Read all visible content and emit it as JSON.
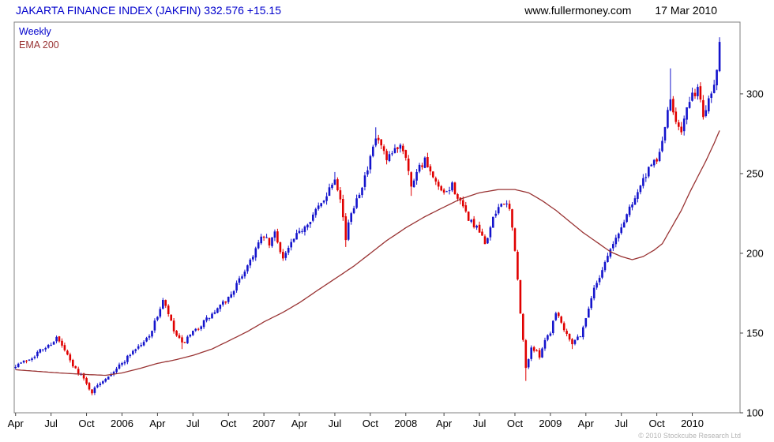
{
  "header": {
    "title": "JAKARTA FINANCE INDEX (JAKFIN) 332.576 +15.15",
    "website": "www.fullermoney.com",
    "date": "17 Mar 2010"
  },
  "legend": {
    "series1": "Weekly",
    "series2": "EMA 200"
  },
  "footer": {
    "copyright": "© 2010 Stockcube Research Ltd"
  },
  "colors": {
    "title": "#0000cc",
    "up": "#1414cc",
    "down": "#e00000",
    "ema": "#993333",
    "border": "#808080",
    "tick": "#444444",
    "axis_text": "#000000"
  },
  "chart_data": {
    "type": "candlestick",
    "title": "JAKARTA FINANCE INDEX (JAKFIN)",
    "last_price": 332.576,
    "change": 15.15,
    "period": "Weekly",
    "overlay": "EMA 200",
    "ylim": [
      100,
      345
    ],
    "y_ticks": [
      100,
      150,
      200,
      250,
      300
    ],
    "weeks_axis": 266,
    "bars": 259,
    "x_ticks": [
      {
        "week": 0,
        "label": "Apr"
      },
      {
        "week": 13,
        "label": "Jul"
      },
      {
        "week": 26,
        "label": "Oct"
      },
      {
        "week": 39,
        "label": "2006"
      },
      {
        "week": 52,
        "label": "Apr"
      },
      {
        "week": 65,
        "label": "Jul"
      },
      {
        "week": 78,
        "label": "Oct"
      },
      {
        "week": 91,
        "label": "2007"
      },
      {
        "week": 104,
        "label": "Apr"
      },
      {
        "week": 117,
        "label": "Jul"
      },
      {
        "week": 130,
        "label": "Oct"
      },
      {
        "week": 143,
        "label": "2008"
      },
      {
        "week": 157,
        "label": "Apr"
      },
      {
        "week": 170,
        "label": "Jul"
      },
      {
        "week": 183,
        "label": "Oct"
      },
      {
        "week": 196,
        "label": "2009"
      },
      {
        "week": 209,
        "label": "Apr"
      },
      {
        "week": 222,
        "label": "Jul"
      },
      {
        "week": 235,
        "label": "Oct"
      },
      {
        "week": 248,
        "label": "2010"
      }
    ],
    "close_anchors": [
      [
        0,
        130
      ],
      [
        3,
        132
      ],
      [
        6,
        135
      ],
      [
        9,
        139
      ],
      [
        12,
        142
      ],
      [
        15,
        147
      ],
      [
        18,
        139
      ],
      [
        21,
        129
      ],
      [
        24,
        124
      ],
      [
        26,
        118
      ],
      [
        28,
        113
      ],
      [
        31,
        119
      ],
      [
        35,
        125
      ],
      [
        39,
        131
      ],
      [
        43,
        139
      ],
      [
        47,
        144
      ],
      [
        50,
        152
      ],
      [
        52,
        161
      ],
      [
        54,
        170
      ],
      [
        56,
        162
      ],
      [
        58,
        151
      ],
      [
        61,
        143
      ],
      [
        65,
        150
      ],
      [
        69,
        157
      ],
      [
        73,
        163
      ],
      [
        78,
        172
      ],
      [
        82,
        183
      ],
      [
        86,
        196
      ],
      [
        89,
        206
      ],
      [
        91,
        211
      ],
      [
        93,
        205
      ],
      [
        95,
        213
      ],
      [
        98,
        197
      ],
      [
        101,
        206
      ],
      [
        104,
        213
      ],
      [
        108,
        222
      ],
      [
        112,
        231
      ],
      [
        115,
        241
      ],
      [
        117,
        248
      ],
      [
        119,
        236
      ],
      [
        121,
        209
      ],
      [
        123,
        226
      ],
      [
        126,
        239
      ],
      [
        129,
        252
      ],
      [
        132,
        272
      ],
      [
        134,
        267
      ],
      [
        136,
        257
      ],
      [
        139,
        265
      ],
      [
        141,
        269
      ],
      [
        143,
        262
      ],
      [
        145,
        241
      ],
      [
        147,
        253
      ],
      [
        150,
        258
      ],
      [
        153,
        246
      ],
      [
        157,
        236
      ],
      [
        160,
        243
      ],
      [
        163,
        231
      ],
      [
        166,
        222
      ],
      [
        170,
        213
      ],
      [
        172,
        206
      ],
      [
        175,
        221
      ],
      [
        178,
        233
      ],
      [
        181,
        227
      ],
      [
        183,
        203
      ],
      [
        185,
        162
      ],
      [
        187,
        128
      ],
      [
        189,
        141
      ],
      [
        192,
        136
      ],
      [
        194,
        146
      ],
      [
        196,
        151
      ],
      [
        198,
        164
      ],
      [
        201,
        153
      ],
      [
        204,
        144
      ],
      [
        207,
        149
      ],
      [
        209,
        159
      ],
      [
        211,
        173
      ],
      [
        214,
        186
      ],
      [
        217,
        199
      ],
      [
        220,
        209
      ],
      [
        222,
        216
      ],
      [
        225,
        229
      ],
      [
        228,
        239
      ],
      [
        231,
        249
      ],
      [
        234,
        257
      ],
      [
        236,
        262
      ],
      [
        238,
        280
      ],
      [
        240,
        295
      ],
      [
        242,
        284
      ],
      [
        244,
        278
      ],
      [
        246,
        290
      ],
      [
        248,
        298
      ],
      [
        250,
        304
      ],
      [
        252,
        286
      ],
      [
        254,
        298
      ],
      [
        256,
        306
      ],
      [
        257,
        315
      ],
      [
        258,
        332.576
      ]
    ],
    "ema_anchors": [
      [
        0,
        127
      ],
      [
        8,
        126
      ],
      [
        16,
        125
      ],
      [
        26,
        124
      ],
      [
        33,
        123.5
      ],
      [
        39,
        125
      ],
      [
        46,
        128
      ],
      [
        52,
        131
      ],
      [
        58,
        133
      ],
      [
        65,
        136
      ],
      [
        72,
        140
      ],
      [
        78,
        145
      ],
      [
        85,
        151
      ],
      [
        91,
        157
      ],
      [
        98,
        163
      ],
      [
        104,
        169
      ],
      [
        110,
        176
      ],
      [
        117,
        184
      ],
      [
        124,
        192
      ],
      [
        130,
        200
      ],
      [
        136,
        208
      ],
      [
        143,
        216
      ],
      [
        150,
        223
      ],
      [
        157,
        229
      ],
      [
        163,
        234
      ],
      [
        170,
        238
      ],
      [
        177,
        240
      ],
      [
        183,
        240
      ],
      [
        188,
        238
      ],
      [
        193,
        233
      ],
      [
        198,
        227
      ],
      [
        203,
        220
      ],
      [
        208,
        213
      ],
      [
        213,
        207
      ],
      [
        218,
        201
      ],
      [
        222,
        198
      ],
      [
        226,
        196
      ],
      [
        230,
        198
      ],
      [
        234,
        202
      ],
      [
        237,
        206
      ],
      [
        240,
        215
      ],
      [
        244,
        227
      ],
      [
        247,
        238
      ],
      [
        250,
        248
      ],
      [
        253,
        258
      ],
      [
        256,
        269
      ],
      [
        258,
        277
      ]
    ],
    "high_overrides": [
      [
        54,
        172
      ],
      [
        117,
        251
      ],
      [
        132,
        279
      ],
      [
        240,
        316
      ],
      [
        258,
        335.5
      ]
    ],
    "low_overrides": [
      [
        28,
        111
      ],
      [
        61,
        140
      ],
      [
        121,
        204
      ],
      [
        145,
        236
      ],
      [
        187,
        120
      ],
      [
        204,
        140
      ]
    ],
    "noise_seed": 7
  }
}
